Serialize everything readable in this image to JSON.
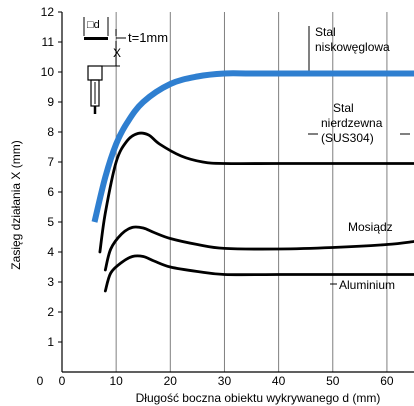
{
  "chart_data": {
    "type": "line",
    "title": "",
    "xlabel": "Długość boczna obiektu wykrywanego d (mm)",
    "ylabel": "Zasięg działania X (mm)",
    "xlim": [
      0,
      65
    ],
    "ylim": [
      0,
      12
    ],
    "x_ticks": [
      "0",
      "10",
      "20",
      "30",
      "40",
      "50",
      "60"
    ],
    "y_ticks": [
      "1",
      "2",
      "3",
      "4",
      "5",
      "6",
      "7",
      "8",
      "9",
      "10",
      "11",
      "12"
    ],
    "grid": "vertical",
    "colors": {
      "steel": "#2f7fd0",
      "other": "#000000",
      "grid": "#7f7f7f"
    },
    "series": [
      {
        "name": "Stal niskowęglowa",
        "color": "#2f7fd0",
        "x": [
          6,
          8,
          10,
          12,
          15,
          20,
          25,
          30,
          35,
          45,
          55,
          65
        ],
        "y": [
          5.0,
          6.5,
          7.6,
          8.3,
          9.0,
          9.6,
          9.85,
          9.95,
          9.95,
          9.95,
          9.95,
          9.95
        ]
      },
      {
        "name": "Stal nierdzewna (SUS304)",
        "color": "#000000",
        "x": [
          7,
          8,
          10,
          12,
          14,
          16,
          18,
          22,
          26,
          30,
          40,
          50,
          65
        ],
        "y": [
          4.0,
          5.3,
          7.0,
          7.7,
          7.95,
          7.9,
          7.6,
          7.2,
          7.0,
          6.95,
          6.95,
          6.95,
          6.95
        ]
      },
      {
        "name": "Mosiądz",
        "color": "#000000",
        "x": [
          8,
          9,
          11,
          13,
          15,
          17,
          20,
          25,
          30,
          40,
          50,
          60,
          65
        ],
        "y": [
          3.4,
          4.1,
          4.6,
          4.82,
          4.8,
          4.65,
          4.45,
          4.25,
          4.12,
          4.1,
          4.15,
          4.25,
          4.35
        ]
      },
      {
        "name": "Aluminium",
        "color": "#000000",
        "x": [
          8,
          9,
          11,
          13,
          15,
          17,
          20,
          25,
          30,
          40,
          50,
          60,
          65
        ],
        "y": [
          2.7,
          3.3,
          3.65,
          3.85,
          3.85,
          3.7,
          3.5,
          3.35,
          3.25,
          3.25,
          3.25,
          3.25,
          3.25
        ]
      }
    ],
    "annotations": {
      "steel_low": [
        "Stal",
        "niskowęglowa"
      ],
      "steel_stainless": [
        "Stal",
        "nierdzewna",
        "(SUS304)"
      ],
      "brass": "Mosiądz",
      "aluminium": "Aluminium",
      "thickness": "t=1mm",
      "inset_d": "□d",
      "inset_x": "X"
    }
  }
}
